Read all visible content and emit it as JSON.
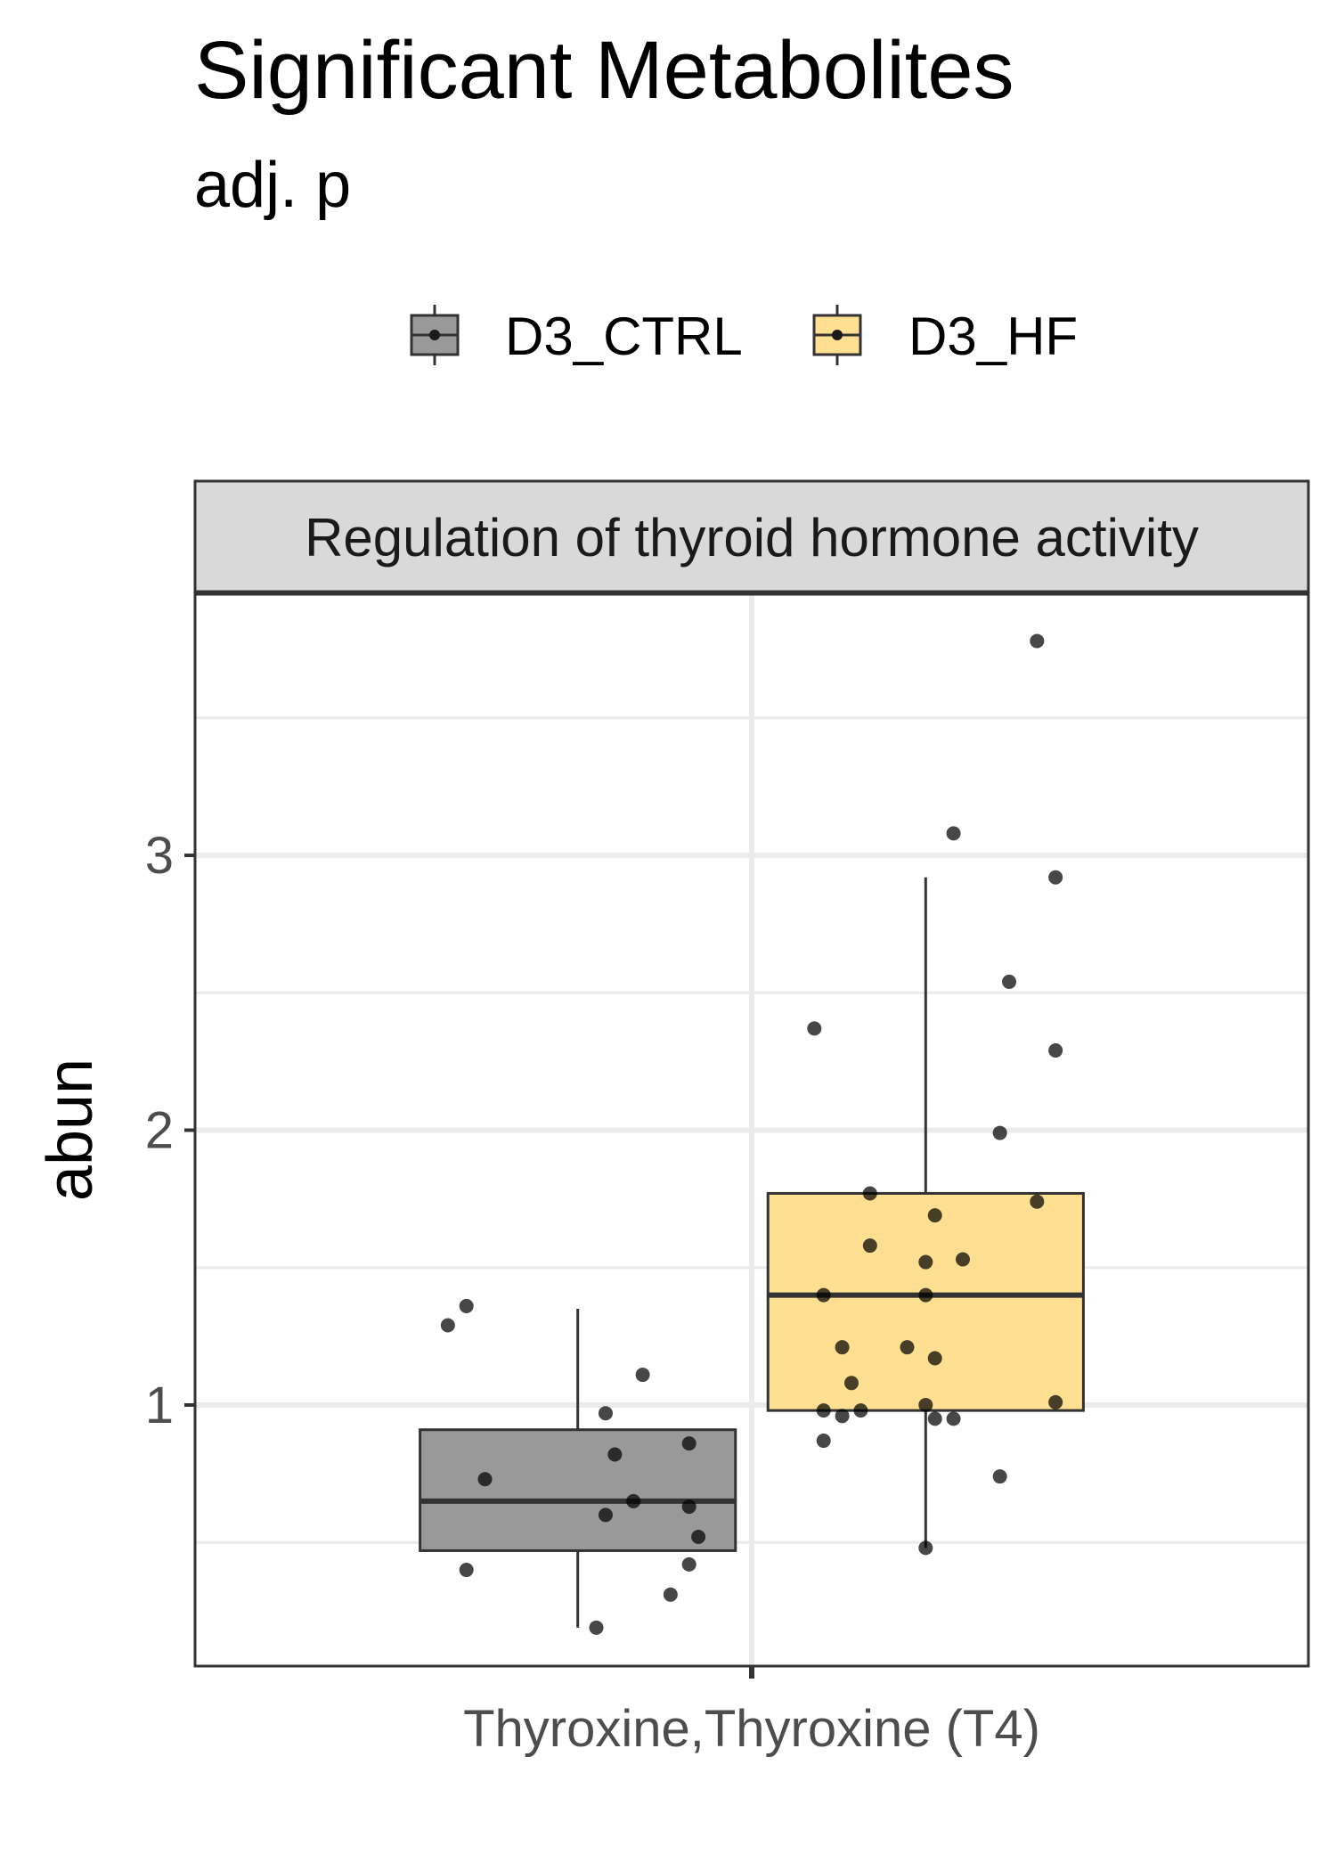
{
  "title": "Significant Metabolites",
  "subtitle": "adj. p",
  "legend": [
    {
      "label": "D3_CTRL",
      "fill": "#999999"
    },
    {
      "label": "D3_HF",
      "fill": "#ffdf91"
    }
  ],
  "chart_data": {
    "type": "boxplot",
    "facet": "Regulation of thyroid hormone activity",
    "xlabel": "",
    "ylabel": "abun",
    "categories": [
      "Thyroxine,Thyroxine (T4)"
    ],
    "ylim": [
      0.05,
      3.95
    ],
    "yticks": [
      1,
      2,
      3
    ],
    "grid": true,
    "legend_position": "top",
    "series": [
      {
        "name": "D3_CTRL",
        "color": "#999999",
        "box": {
          "whisker_low": 0.19,
          "q1": 0.47,
          "median": 0.65,
          "q3": 0.91,
          "whisker_high": 1.35
        },
        "points": [
          {
            "dx": -0.12,
            "y": 1.36
          },
          {
            "dx": -0.14,
            "y": 1.29
          },
          {
            "dx": 0.07,
            "y": 1.11
          },
          {
            "dx": 0.03,
            "y": 0.97
          },
          {
            "dx": 0.12,
            "y": 0.86
          },
          {
            "dx": 0.04,
            "y": 0.82
          },
          {
            "dx": -0.1,
            "y": 0.73
          },
          {
            "dx": 0.06,
            "y": 0.65
          },
          {
            "dx": 0.12,
            "y": 0.63
          },
          {
            "dx": 0.03,
            "y": 0.6
          },
          {
            "dx": 0.13,
            "y": 0.52
          },
          {
            "dx": 0.12,
            "y": 0.42
          },
          {
            "dx": -0.12,
            "y": 0.4
          },
          {
            "dx": 0.1,
            "y": 0.31
          },
          {
            "dx": 0.02,
            "y": 0.19
          }
        ]
      },
      {
        "name": "D3_HF",
        "color": "#ffdf91",
        "box": {
          "whisker_low": 0.48,
          "q1": 0.98,
          "median": 1.4,
          "q3": 1.77,
          "whisker_high": 2.92
        },
        "points": [
          {
            "dx": 0.12,
            "y": 3.78
          },
          {
            "dx": 0.03,
            "y": 3.08
          },
          {
            "dx": 0.14,
            "y": 2.92
          },
          {
            "dx": 0.09,
            "y": 2.54
          },
          {
            "dx": -0.12,
            "y": 2.37
          },
          {
            "dx": 0.14,
            "y": 2.29
          },
          {
            "dx": 0.08,
            "y": 1.99
          },
          {
            "dx": -0.06,
            "y": 1.77
          },
          {
            "dx": 0.12,
            "y": 1.74
          },
          {
            "dx": 0.01,
            "y": 1.69
          },
          {
            "dx": -0.06,
            "y": 1.58
          },
          {
            "dx": 0.04,
            "y": 1.53
          },
          {
            "dx": 0.0,
            "y": 1.52
          },
          {
            "dx": -0.11,
            "y": 1.4
          },
          {
            "dx": 0.0,
            "y": 1.4
          },
          {
            "dx": -0.09,
            "y": 1.21
          },
          {
            "dx": -0.02,
            "y": 1.21
          },
          {
            "dx": 0.01,
            "y": 1.17
          },
          {
            "dx": -0.08,
            "y": 1.08
          },
          {
            "dx": 0.14,
            "y": 1.01
          },
          {
            "dx": 0.0,
            "y": 1.0
          },
          {
            "dx": -0.11,
            "y": 0.98
          },
          {
            "dx": -0.07,
            "y": 0.98
          },
          {
            "dx": -0.09,
            "y": 0.96
          },
          {
            "dx": 0.01,
            "y": 0.95
          },
          {
            "dx": 0.03,
            "y": 0.95
          },
          {
            "dx": -0.11,
            "y": 0.87
          },
          {
            "dx": 0.08,
            "y": 0.74
          },
          {
            "dx": 0.0,
            "y": 0.48
          }
        ]
      }
    ]
  }
}
